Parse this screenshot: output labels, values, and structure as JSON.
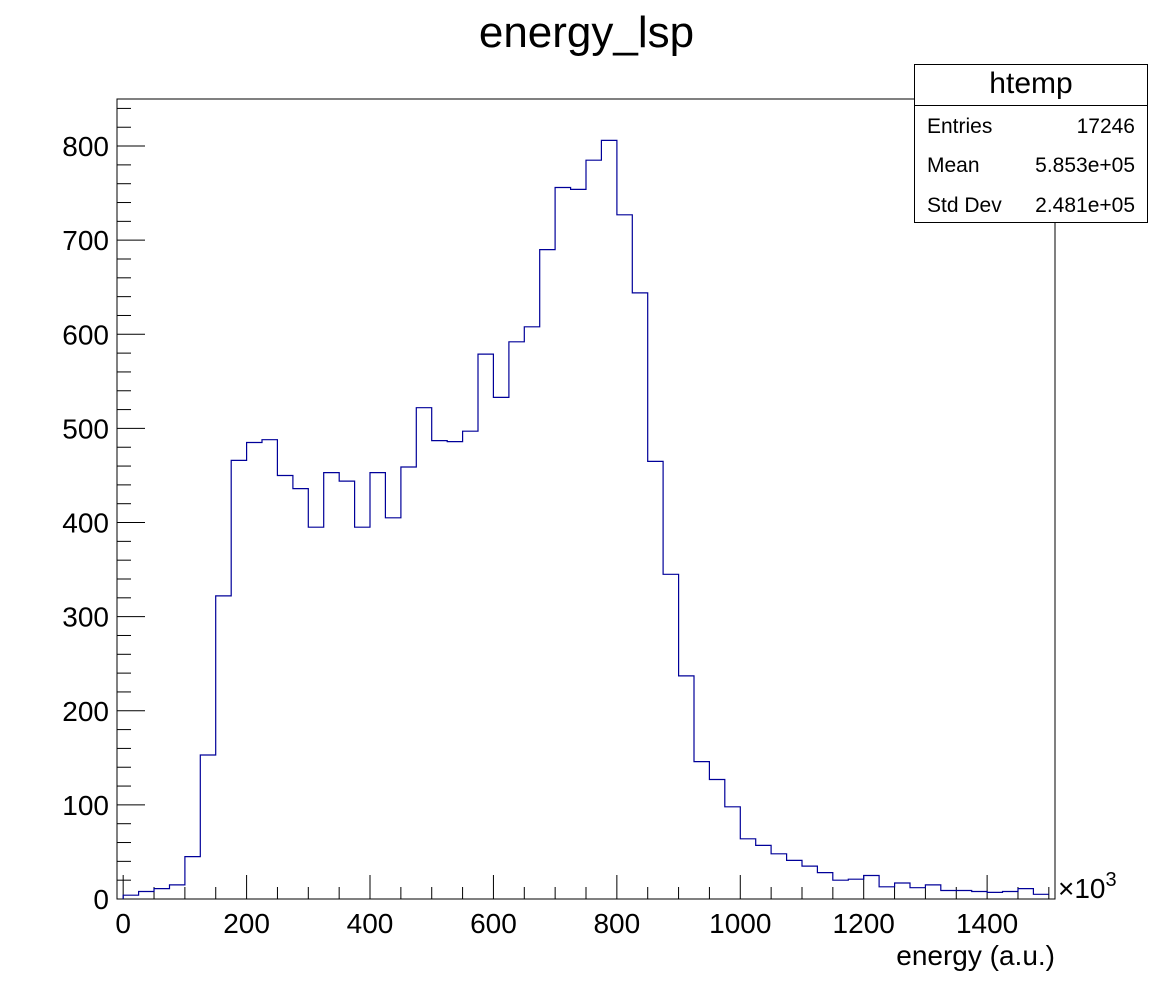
{
  "chart_data": {
    "type": "histogram",
    "title": "energy_lsp",
    "xlabel": "energy (a.u.)",
    "ylabel": "",
    "x_multiplier_label": "×10",
    "x_multiplier_exp": "3",
    "xlim": [
      -10,
      1510
    ],
    "ylim": [
      0,
      850
    ],
    "bin_width": 25,
    "bin_start": 0,
    "x_ticks": [
      0,
      200,
      400,
      600,
      800,
      1000,
      1200,
      1400
    ],
    "y_ticks": [
      0,
      100,
      200,
      300,
      400,
      500,
      600,
      700,
      800
    ],
    "values": [
      4,
      8,
      11,
      15,
      45,
      153,
      322,
      466,
      485,
      488,
      450,
      436,
      395,
      453,
      444,
      395,
      453,
      405,
      459,
      522,
      487,
      486,
      497,
      579,
      533,
      592,
      608,
      690,
      756,
      754,
      785,
      806,
      727,
      644,
      465,
      345,
      237,
      146,
      127,
      98,
      64,
      57,
      48,
      41,
      35,
      28,
      20,
      21,
      25,
      13,
      17,
      12,
      15,
      9,
      9,
      8,
      7,
      8,
      11,
      5
    ],
    "legend": "none",
    "grid": false,
    "line_color": "#000099",
    "stats": {
      "title": "htemp",
      "rows": [
        {
          "key": "Entries",
          "value": "17246"
        },
        {
          "key": "Mean",
          "value": "5.853e+05"
        },
        {
          "key": "Std Dev",
          "value": "2.481e+05"
        }
      ]
    }
  }
}
